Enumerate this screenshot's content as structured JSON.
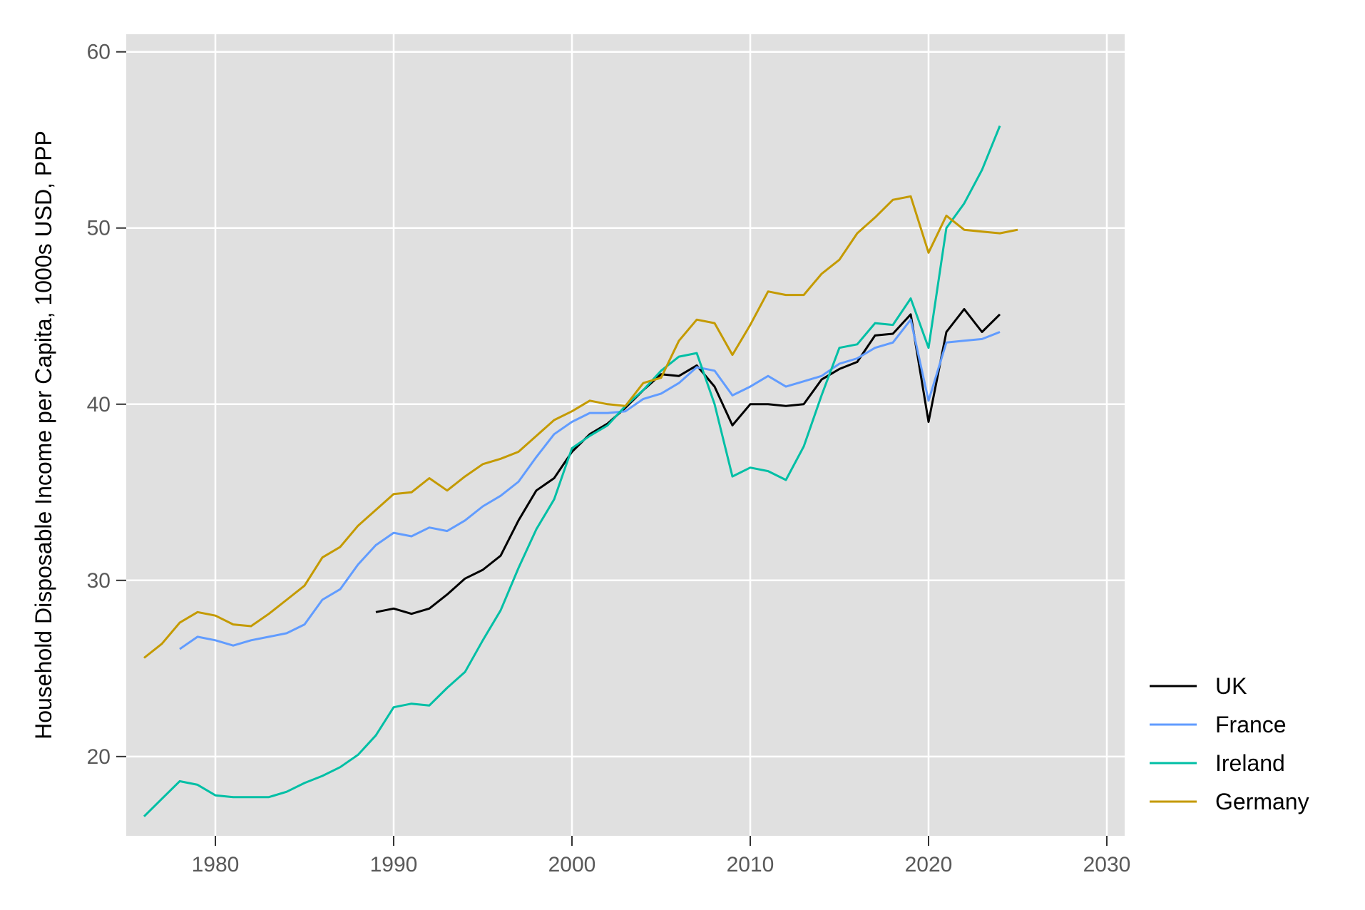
{
  "chart_data": {
    "type": "line",
    "title": "",
    "xlabel": "",
    "ylabel": "Household Disposable Income per Capita, 1000s USD, PPP",
    "xlim": [
      1975,
      2031
    ],
    "ylim": [
      15.5,
      61
    ],
    "xticks": [
      1980,
      1990,
      2000,
      2010,
      2020,
      2030
    ],
    "yticks": [
      20,
      30,
      40,
      50,
      60
    ],
    "grid": true,
    "legend_position": "right",
    "colors": {
      "panel_background": "#e0e0e0",
      "grid": "#ffffff"
    },
    "series": [
      {
        "name": "UK",
        "color": "#000000",
        "x": [
          1989,
          1990,
          1991,
          1992,
          1993,
          1994,
          1995,
          1996,
          1997,
          1998,
          1999,
          2000,
          2001,
          2002,
          2003,
          2004,
          2005,
          2006,
          2007,
          2008,
          2009,
          2010,
          2011,
          2012,
          2013,
          2014,
          2015,
          2016,
          2017,
          2018,
          2019,
          2020,
          2021,
          2022,
          2023,
          2024
        ],
        "values": [
          28.2,
          28.4,
          28.1,
          28.4,
          29.2,
          30.1,
          30.6,
          31.4,
          33.4,
          35.1,
          35.8,
          37.3,
          38.3,
          38.9,
          39.8,
          40.8,
          41.7,
          41.6,
          42.2,
          41.0,
          38.8,
          40.0,
          40.0,
          39.9,
          40.0,
          41.4,
          42.0,
          42.4,
          43.9,
          44.0,
          45.1,
          39.0,
          44.1,
          45.4,
          44.1,
          45.1
        ]
      },
      {
        "name": "France",
        "color": "#619cff",
        "x": [
          1978,
          1979,
          1980,
          1981,
          1982,
          1983,
          1984,
          1985,
          1986,
          1987,
          1988,
          1989,
          1990,
          1991,
          1992,
          1993,
          1994,
          1995,
          1996,
          1997,
          1998,
          1999,
          2000,
          2001,
          2002,
          2003,
          2004,
          2005,
          2006,
          2007,
          2008,
          2009,
          2010,
          2011,
          2012,
          2013,
          2014,
          2015,
          2016,
          2017,
          2018,
          2019,
          2020,
          2021,
          2022,
          2023,
          2024
        ],
        "values": [
          26.1,
          26.8,
          26.6,
          26.3,
          26.6,
          26.8,
          27.0,
          27.5,
          28.9,
          29.5,
          30.9,
          32.0,
          32.7,
          32.5,
          33.0,
          32.8,
          33.4,
          34.2,
          34.8,
          35.6,
          37.0,
          38.3,
          39.0,
          39.5,
          39.5,
          39.6,
          40.3,
          40.6,
          41.2,
          42.1,
          41.9,
          40.5,
          41.0,
          41.6,
          41.0,
          41.3,
          41.6,
          42.3,
          42.6,
          43.2,
          43.5,
          44.8,
          40.2,
          43.5,
          43.6,
          43.7,
          44.1
        ]
      },
      {
        "name": "Ireland",
        "color": "#00bfa5",
        "x": [
          1976,
          1977,
          1978,
          1979,
          1980,
          1981,
          1982,
          1983,
          1984,
          1985,
          1986,
          1987,
          1988,
          1989,
          1990,
          1991,
          1992,
          1993,
          1994,
          1995,
          1996,
          1997,
          1998,
          1999,
          2000,
          2001,
          2002,
          2003,
          2004,
          2005,
          2006,
          2007,
          2008,
          2009,
          2010,
          2011,
          2012,
          2013,
          2014,
          2015,
          2016,
          2017,
          2018,
          2019,
          2020,
          2021,
          2022,
          2023,
          2024
        ],
        "values": [
          16.6,
          17.6,
          18.6,
          18.4,
          17.8,
          17.7,
          17.7,
          17.7,
          18.0,
          18.5,
          18.9,
          19.4,
          20.1,
          21.2,
          22.8,
          23.0,
          22.9,
          23.9,
          24.8,
          26.6,
          28.3,
          30.7,
          32.9,
          34.6,
          37.5,
          38.2,
          38.8,
          39.9,
          40.8,
          41.9,
          42.7,
          42.9,
          40.0,
          35.9,
          36.4,
          36.2,
          35.7,
          37.6,
          40.5,
          43.2,
          43.4,
          44.6,
          44.5,
          46.0,
          43.2,
          50.0,
          51.4,
          53.3,
          55.8
        ]
      },
      {
        "name": "Germany",
        "color": "#c49a00",
        "x": [
          1976,
          1977,
          1978,
          1979,
          1980,
          1981,
          1982,
          1983,
          1984,
          1985,
          1986,
          1987,
          1988,
          1989,
          1990,
          1991,
          1992,
          1993,
          1994,
          1995,
          1996,
          1997,
          1998,
          1999,
          2000,
          2001,
          2002,
          2003,
          2004,
          2005,
          2006,
          2007,
          2008,
          2009,
          2010,
          2011,
          2012,
          2013,
          2014,
          2015,
          2016,
          2017,
          2018,
          2019,
          2020,
          2021,
          2022,
          2023,
          2024,
          2025
        ],
        "values": [
          25.6,
          26.4,
          27.6,
          28.2,
          28.0,
          27.5,
          27.4,
          28.1,
          28.9,
          29.7,
          31.3,
          31.9,
          33.1,
          34.0,
          34.9,
          35.0,
          35.8,
          35.1,
          35.9,
          36.6,
          36.9,
          37.3,
          38.2,
          39.1,
          39.6,
          40.2,
          40.0,
          39.9,
          41.2,
          41.5,
          43.6,
          44.8,
          44.6,
          42.8,
          44.5,
          46.4,
          46.2,
          46.2,
          47.4,
          48.2,
          49.7,
          50.6,
          51.6,
          51.8,
          48.6,
          50.7,
          49.9,
          49.8,
          49.7,
          49.9
        ]
      }
    ]
  }
}
